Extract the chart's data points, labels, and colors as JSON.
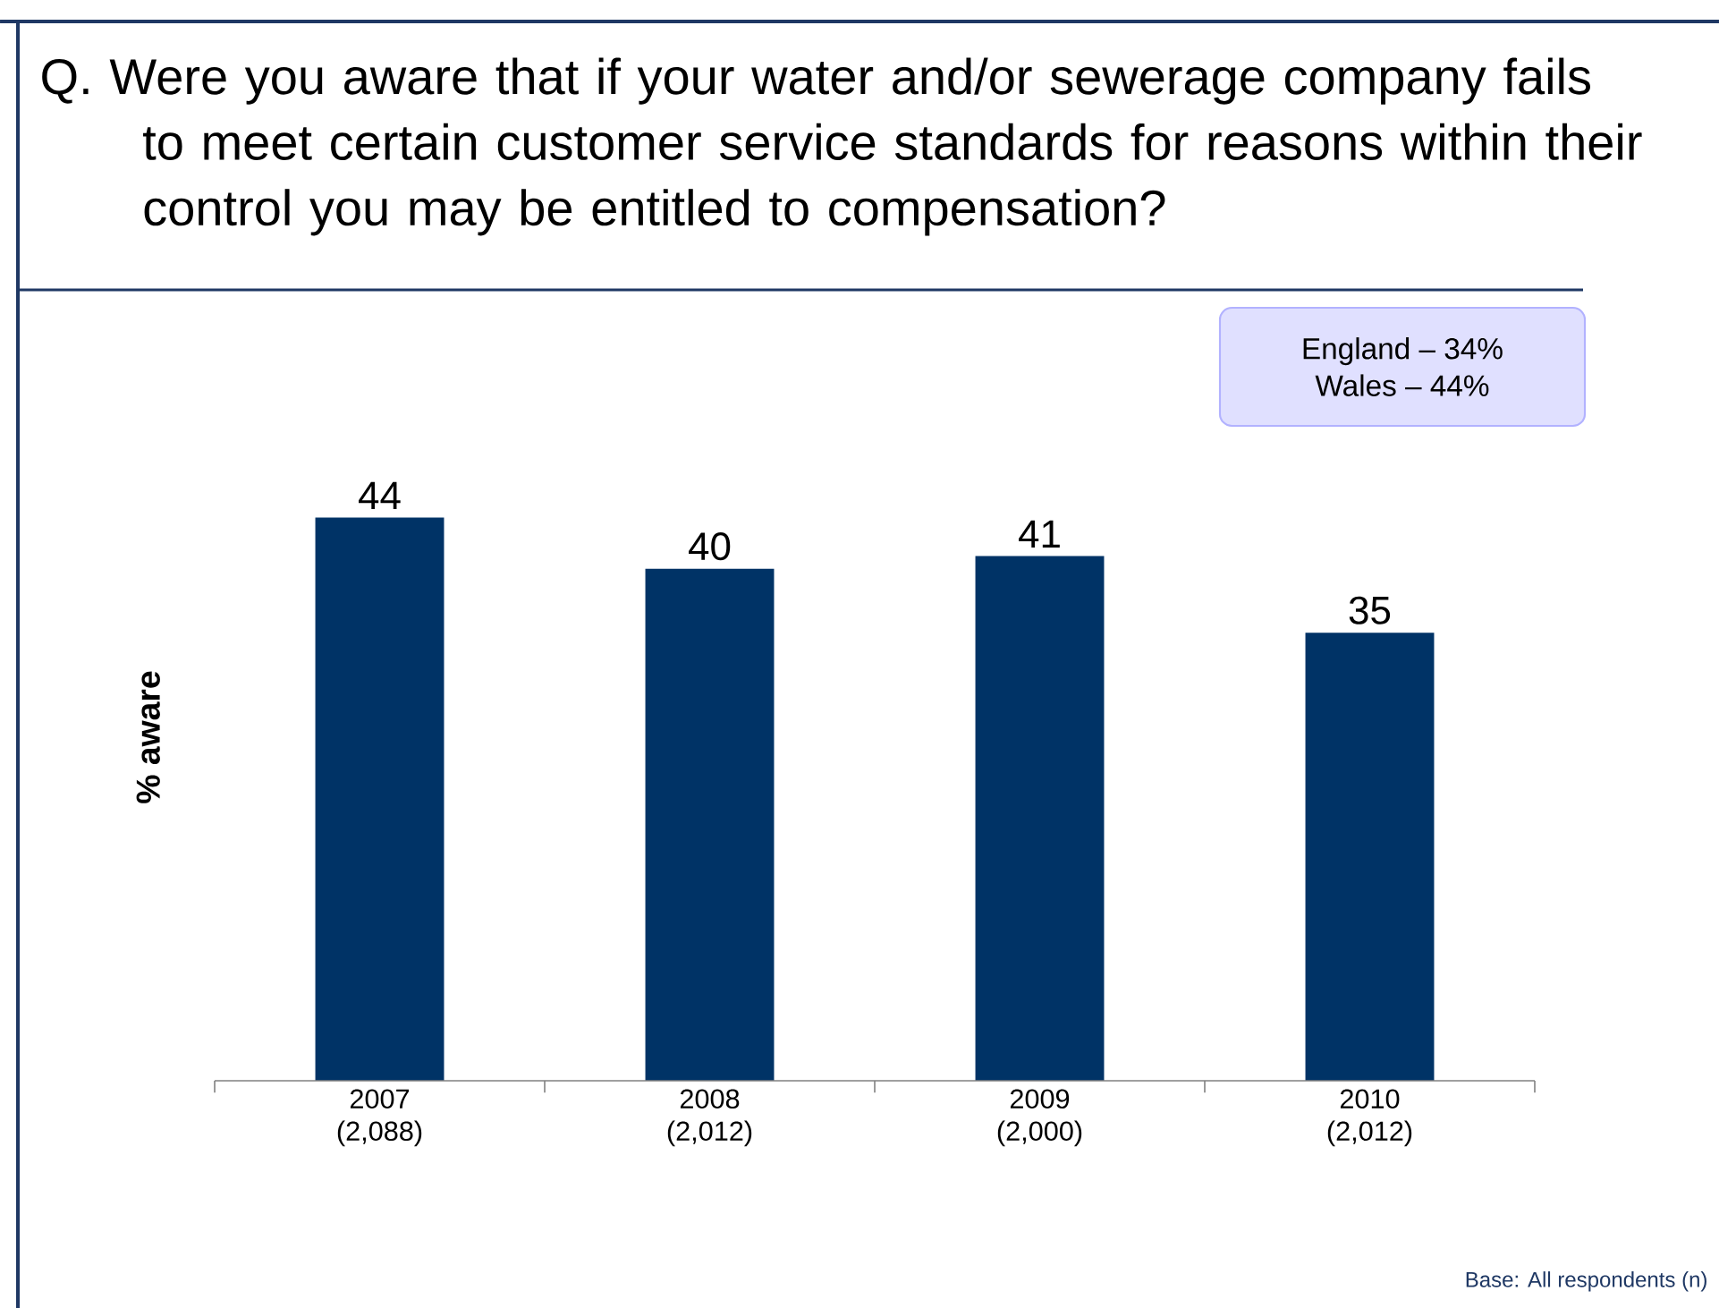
{
  "chart_data": {
    "type": "bar",
    "title": "Q. Were you aware that if your water and/or sewerage company fails to meet certain customer service standards for reasons within their control you may be entitled to compensation?",
    "ylabel": "% aware",
    "categories": [
      "2007 (2,088)",
      "2008 (2,012)",
      "2009 (2,000)",
      "2010 (2,012)"
    ],
    "values": [
      44,
      40,
      41,
      35
    ],
    "color": "#003366",
    "data_labels": true,
    "annotations": [
      "England – 34%",
      "Wales – 44%",
      "Base: All respondents (n)"
    ]
  }
}
